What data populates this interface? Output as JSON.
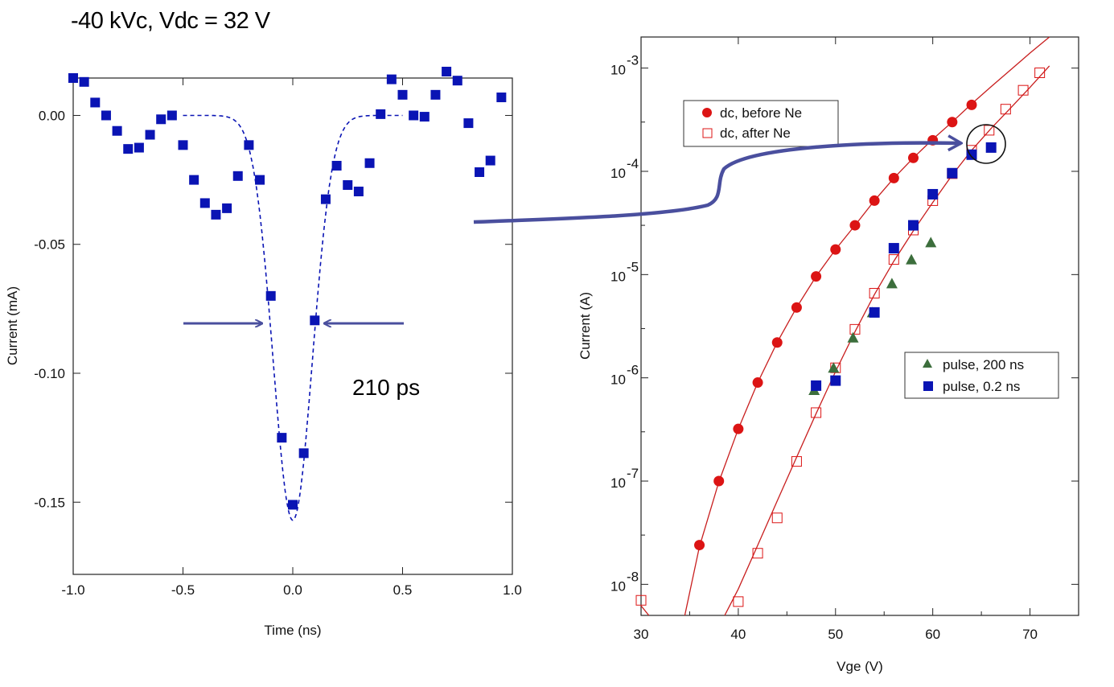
{
  "page_title": "-40 kVc, Vdc = 32 V",
  "colors": {
    "blue": "#0a14b4",
    "red": "#dc1414",
    "green": "#3c6e3c",
    "arrow": "#4a4f9e",
    "curve_red": "#c81e1e"
  },
  "chart_data": [
    {
      "type": "scatter",
      "panel": "left",
      "xlabel": "Time (ns)",
      "ylabel": "Current (mA)",
      "xlim": [
        -1.0,
        1.0
      ],
      "ylim": [
        -0.178,
        0.0145
      ],
      "xticks": [
        -1.0,
        -0.5,
        0.0,
        0.5,
        1.0
      ],
      "xtick_labels": [
        "-1.0",
        "-0.5",
        "0.0",
        "0.5",
        "1.0"
      ],
      "yticks": [
        0.0,
        -0.05,
        -0.1,
        -0.15
      ],
      "ytick_labels": [
        "0.00",
        "-0.05",
        "-0.10",
        "-0.15"
      ],
      "annotation": "210 ps",
      "series": [
        {
          "name": "measured pulse",
          "marker": "square",
          "x": [
            -1.0,
            -0.95,
            -0.9,
            -0.85,
            -0.8,
            -0.75,
            -0.7,
            -0.65,
            -0.6,
            -0.55,
            -0.5,
            -0.45,
            -0.4,
            -0.35,
            -0.3,
            -0.25,
            -0.2,
            -0.15,
            -0.1,
            -0.05,
            0.0,
            0.05,
            0.1,
            0.15,
            0.2,
            0.25,
            0.3,
            0.35,
            0.4,
            0.45,
            0.5,
            0.55,
            0.6,
            0.65,
            0.7,
            0.75,
            0.8,
            0.85,
            0.9,
            0.95
          ],
          "y": [
            0.0145,
            0.013,
            0.005,
            0.0,
            -0.006,
            -0.013,
            -0.0125,
            -0.0075,
            -0.0015,
            0.0,
            -0.0115,
            -0.025,
            -0.034,
            -0.0385,
            -0.036,
            -0.0235,
            -0.0115,
            -0.025,
            -0.07,
            -0.125,
            -0.151,
            -0.131,
            -0.0795,
            -0.0325,
            -0.0195,
            -0.027,
            -0.0295,
            -0.0185,
            0.0005,
            0.014,
            0.008,
            0.0,
            -0.0005,
            0.008,
            0.017,
            0.0135,
            -0.003,
            -0.022,
            -0.0175,
            0.007
          ]
        },
        {
          "name": "gaussian fit",
          "style": "dashed",
          "center": 0.0,
          "fwhm_ns": 0.21,
          "amplitude": -0.157,
          "baseline": 0.0
        }
      ]
    },
    {
      "type": "scatter",
      "panel": "right",
      "yscale": "log",
      "xlabel": "Vge (V)",
      "ylabel": "Current (A)",
      "xlim": [
        30,
        75
      ],
      "ylim": [
        5e-09,
        0.002
      ],
      "xticks": [
        30,
        40,
        50,
        60,
        70
      ],
      "xtick_labels": [
        "30",
        "40",
        "50",
        "60",
        "70"
      ],
      "yticks": [
        1e-08,
        1e-07,
        1e-06,
        1e-05,
        0.0001,
        0.001
      ],
      "ytick_labels": [
        "10",
        "10",
        "10",
        "10",
        "10",
        "10"
      ],
      "ytick_exponents": [
        "-8",
        "-7",
        "-6",
        "-5",
        "-4",
        "-3"
      ],
      "legends": [
        {
          "position": "upper-left",
          "entries": [
            "dc, before Ne",
            "dc, after Ne"
          ]
        },
        {
          "position": "middle-right",
          "entries": [
            "pulse, 200 ns",
            "pulse, 0.2 ns"
          ]
        }
      ],
      "series": [
        {
          "name": "dc, before Ne",
          "marker": "filled-circle",
          "x": [
            36,
            38,
            40,
            42,
            44,
            46,
            48,
            50,
            52,
            54,
            56,
            58,
            60,
            62,
            64
          ],
          "y": [
            2.4e-08,
            1e-07,
            3.2e-07,
            9e-07,
            2.2e-06,
            4.8e-06,
            9.6e-06,
            1.75e-05,
            3e-05,
            5.2e-05,
            8.6e-05,
            0.000135,
            0.0002,
            0.0003,
            0.00044
          ]
        },
        {
          "name": "dc, after Ne",
          "marker": "open-square",
          "x": [
            30,
            40,
            42,
            44,
            46,
            48,
            50,
            52,
            54,
            56,
            58,
            60,
            62,
            64,
            65.8,
            67.5,
            69.3,
            71
          ],
          "y": [
            7e-09,
            6.8e-09,
            2e-08,
            4.4e-08,
            1.55e-07,
            4.6e-07,
            1.25e-06,
            2.95e-06,
            6.6e-06,
            1.4e-05,
            2.7e-05,
            5.2e-05,
            9.5e-05,
            0.00016,
            0.00025,
            0.0004,
            0.00061,
            0.0009
          ]
        },
        {
          "name": "pulse, 200 ns",
          "marker": "filled-triangle",
          "x": [
            47.8,
            49.8,
            51.8,
            53.8,
            55.8,
            57.8,
            59.8
          ],
          "y": [
            7.6e-07,
            1.25e-06,
            2.45e-06,
            4.3e-06,
            8.2e-06,
            1.4e-05,
            2.05e-05
          ]
        },
        {
          "name": "pulse, 0.2 ns",
          "marker": "filled-square",
          "x": [
            48,
            50,
            54,
            56,
            58,
            60,
            62,
            64,
            66
          ],
          "y": [
            8.4e-07,
            9.4e-07,
            4.3e-06,
            1.8e-05,
            3e-05,
            6e-05,
            9.6e-05,
            0.000145,
            0.00017
          ]
        },
        {
          "name": "fit before Ne",
          "style": "line",
          "x": [
            34.5,
            36,
            38,
            40,
            42,
            44,
            46,
            48,
            50,
            52,
            54,
            56,
            58,
            60,
            62,
            64,
            66,
            68,
            70,
            72
          ],
          "y": [
            5e-09,
            2.3e-08,
            9.8e-08,
            3.2e-07,
            9e-07,
            2.2e-06,
            4.8e-06,
            9.6e-06,
            1.75e-05,
            3e-05,
            5.2e-05,
            8.6e-05,
            0.000135,
            0.000205,
            0.0003,
            0.00045,
            0.00066,
            0.00096,
            0.0014,
            0.002
          ]
        },
        {
          "name": "fit after Ne",
          "style": "line",
          "x": [
            38.6,
            40,
            42,
            44,
            46,
            48,
            50,
            52,
            54,
            56,
            58,
            60,
            62,
            64,
            66,
            68,
            70,
            72
          ],
          "y": [
            5e-09,
            9e-09,
            2.4e-08,
            6.4e-08,
            1.7e-07,
            4.5e-07,
            1.15e-06,
            2.8e-06,
            6.4e-06,
            1.35e-05,
            2.65e-05,
            5e-05,
            9.2e-05,
            0.00016,
            0.00026,
            0.00041,
            0.00065,
            0.00105
          ]
        },
        {
          "name": "fit low tail",
          "style": "line",
          "x": [
            30,
            30.8
          ],
          "y": [
            6.2e-09,
            5e-09
          ]
        }
      ]
    }
  ]
}
